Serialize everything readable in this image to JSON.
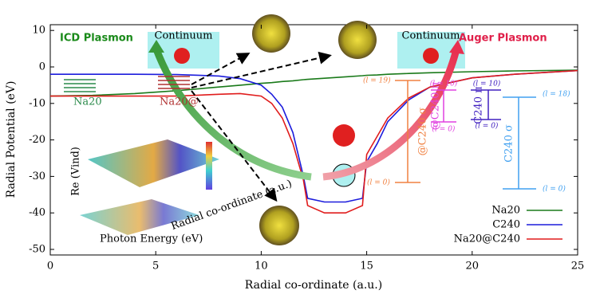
{
  "chart_data": {
    "type": "line",
    "x": [
      0,
      2,
      4,
      6,
      8,
      9,
      10,
      10.5,
      11,
      11.5,
      12,
      12.2,
      13,
      14,
      14.8,
      15,
      15.5,
      16,
      17,
      18,
      20,
      22,
      25
    ],
    "series": [
      {
        "name": "Na20",
        "color": "#1a7a1a",
        "values": [
          -8,
          -7.8,
          -7.3,
          -6.5,
          -5.5,
          -5,
          -4.5,
          -4.3,
          -4,
          -3.8,
          -3.5,
          -3.4,
          -3.1,
          -2.7,
          -2.4,
          -2.3,
          -2.2,
          -2,
          -1.8,
          -1.6,
          -1.3,
          -1.1,
          -0.9
        ]
      },
      {
        "name": "C240",
        "color": "#1c1cdc",
        "values": [
          -2,
          -2,
          -2,
          -2.1,
          -2.5,
          -3.2,
          -5,
          -7.5,
          -11,
          -18,
          -30,
          -36,
          -37,
          -37,
          -36,
          -26,
          -21,
          -15,
          -9,
          -5.5,
          -3,
          -2,
          -1
        ]
      },
      {
        "name": "Na20@C240",
        "color": "#e01c1c",
        "values": [
          -8,
          -8,
          -8,
          -8,
          -7.5,
          -7.3,
          -8,
          -10,
          -14,
          -21,
          -31,
          -38,
          -40,
          -40,
          -38,
          -24,
          -19,
          -14,
          -8.5,
          -5.5,
          -3,
          -2,
          -1
        ]
      }
    ],
    "xlabel": "Radial co-ordinate (a.u.)",
    "ylabel": "Radial Potential (eV)",
    "xlim": [
      0,
      25
    ],
    "ylim": [
      -50,
      10
    ],
    "xticks": [
      0,
      5,
      10,
      15,
      20,
      25
    ],
    "yticks": [
      10,
      0,
      -10,
      -20,
      -30,
      -40,
      -50
    ],
    "legend": "lower right",
    "annotations": [
      "ICD Plasmon",
      "Auger Plasmon",
      "Continuum",
      "Continuum",
      "Na20",
      "Na20@",
      "(l = 19)",
      "(l = 0)",
      "@C240 σ",
      "(l = 10)",
      "@C240 π",
      "(l = 0)",
      "(l = 10)",
      "C240 π",
      "(l = 0)",
      "(l = 18)",
      "C240 σ",
      "(l = 0)",
      "Re (Vind)",
      "Photon Energy (eV)",
      "Radial co-ordinate (a.u.)"
    ]
  }
}
